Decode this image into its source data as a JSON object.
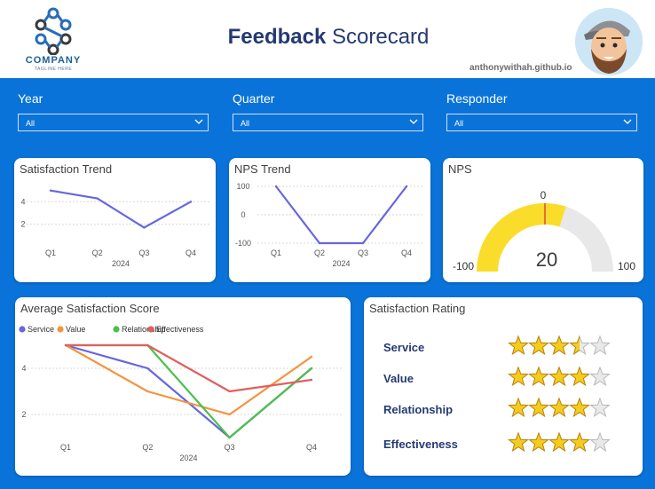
{
  "header": {
    "logo_word": "COMPANY",
    "logo_tagline": "TAGLINE HERE",
    "title_bold": "Feedback",
    "title_rest": " Scorecard",
    "credit": "anthonywithah.github.io"
  },
  "slicers": [
    {
      "label": "Year",
      "value": "All"
    },
    {
      "label": "Quarter",
      "value": "All"
    },
    {
      "label": "Responder",
      "value": "All"
    }
  ],
  "satisfaction_trend": {
    "title": "Satisfaction Trend"
  },
  "nps_trend": {
    "title": "NPS Trend"
  },
  "nps": {
    "title": "NPS",
    "min_label": "-100",
    "max_label": "100",
    "target_label": "0",
    "value_label": "20"
  },
  "avg_satisfaction": {
    "title": "Average Satisfaction Score"
  },
  "rating": {
    "title": "Satisfaction Rating",
    "items": [
      {
        "label": "Service",
        "stars": 3.5
      },
      {
        "label": "Value",
        "stars": 4
      },
      {
        "label": "Relationship",
        "stars": 4
      },
      {
        "label": "Effectiveness",
        "stars": 4
      }
    ]
  },
  "chart_data": [
    {
      "type": "line",
      "title": "Satisfaction Trend",
      "categories": [
        "Q1",
        "Q2",
        "Q3",
        "Q4"
      ],
      "group_label": "2024",
      "yticks": [
        "4",
        "2"
      ],
      "ylim": [
        0,
        6
      ],
      "series": [
        {
          "name": "Satisfaction",
          "color": "#6666e0",
          "values": [
            5.0,
            4.3,
            1.7,
            4.0
          ]
        }
      ]
    },
    {
      "type": "line",
      "title": "NPS Trend",
      "categories": [
        "Q1",
        "Q2",
        "Q3",
        "Q4"
      ],
      "group_label": "2024",
      "yticks": [
        "100",
        "0",
        "-100"
      ],
      "ylim": [
        -100,
        100
      ],
      "series": [
        {
          "name": "NPS",
          "color": "#6666e0",
          "values": [
            100,
            -100,
            -100,
            100
          ]
        }
      ]
    },
    {
      "type": "gauge",
      "title": "NPS",
      "min": -100,
      "max": 100,
      "target": 0,
      "value": 20,
      "fill_color": "#fadd2a",
      "track_color": "#e8e8e8",
      "target_color": "#e04a3c"
    },
    {
      "type": "line",
      "title": "Average Satisfaction Score",
      "categories": [
        "Q1",
        "Q2",
        "Q3",
        "Q4"
      ],
      "group_label": "2024",
      "yticks": [
        "4",
        "2"
      ],
      "ylim": [
        0,
        6
      ],
      "legend": "top-left",
      "series": [
        {
          "name": "Service",
          "color": "#6666e0",
          "values": [
            5.0,
            4.0,
            1.0,
            4.0
          ]
        },
        {
          "name": "Value",
          "color": "#f5933e",
          "values": [
            5.0,
            3.0,
            2.0,
            4.5
          ]
        },
        {
          "name": "Relationship",
          "color": "#4cc04c",
          "values": [
            5.0,
            5.0,
            1.0,
            4.0
          ]
        },
        {
          "name": "Effectiveness",
          "color": "#e06060",
          "values": [
            5.0,
            5.0,
            3.0,
            3.5
          ]
        }
      ]
    }
  ]
}
